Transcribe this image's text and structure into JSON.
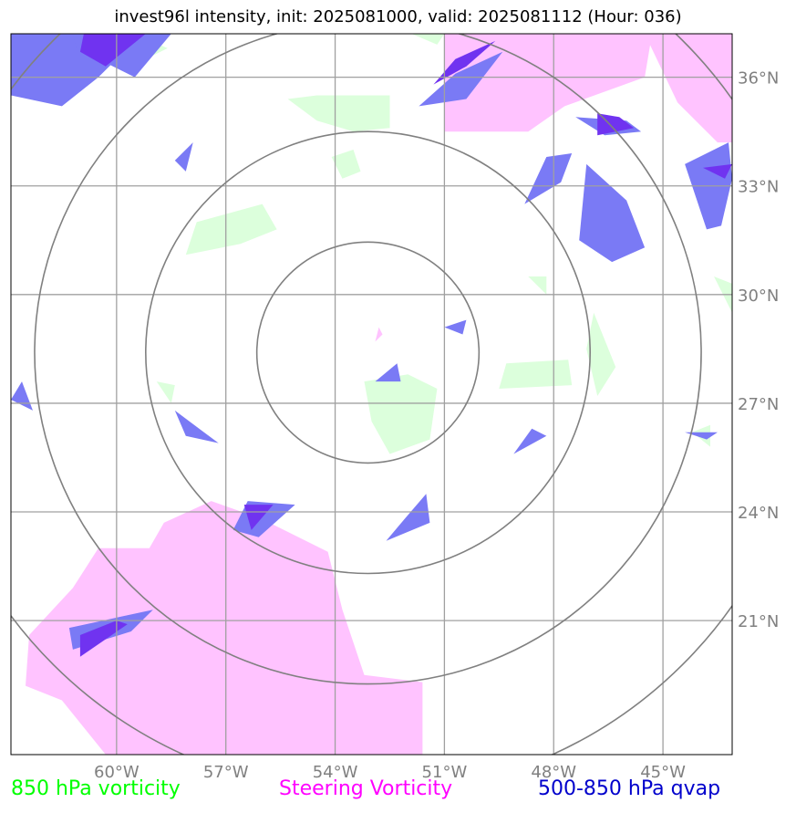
{
  "title": "invest96l intensity, init: 2025081000, valid: 2025081112 (Hour: 036)",
  "legend": [
    {
      "label": "850 hPa vorticity",
      "color": "#00ff00"
    },
    {
      "label": "Steering Vorticity",
      "color": "#ff00ff"
    },
    {
      "label": "500-850 hPa qvap",
      "color": "#0000cc"
    }
  ],
  "map": {
    "lon_range": [
      -62.9,
      -43.1
    ],
    "lat_range": [
      17.3,
      37.2
    ],
    "lon_ticks": [
      {
        "value": -60,
        "label": "60°W"
      },
      {
        "value": -57,
        "label": "57°W"
      },
      {
        "value": -54,
        "label": "54°W"
      },
      {
        "value": -51,
        "label": "51°W"
      },
      {
        "value": -48,
        "label": "48°W"
      },
      {
        "value": -45,
        "label": "45°W"
      }
    ],
    "lat_ticks": [
      {
        "value": 36,
        "label": "36°N"
      },
      {
        "value": 33,
        "label": "33°N"
      },
      {
        "value": 30,
        "label": "30°N"
      },
      {
        "value": 27,
        "label": "27°N"
      },
      {
        "value": 24,
        "label": "24°N"
      },
      {
        "value": 21,
        "label": "21°N"
      }
    ],
    "rings_center": {
      "lon": -53.1,
      "lat": 28.4
    },
    "ring_radii_deg": [
      3.05,
      6.1,
      9.15,
      12.2
    ],
    "colors": {
      "vorticity_850": "#dcffdc",
      "steering": "#ffc0ff",
      "qvap": "#7a7af5",
      "qvap_dark": "#7033f0",
      "grid": "#a0a0a0",
      "ring": "#808080",
      "tick_label": "#808080"
    },
    "fields": {
      "vorticity_850": [
        [
          [
            -54.5,
            35.5
          ],
          [
            -52.5,
            35.5
          ],
          [
            -52.5,
            34.6
          ],
          [
            -53.5,
            34.5
          ],
          [
            -54.5,
            34.8
          ],
          [
            -55.3,
            35.4
          ]
        ],
        [
          [
            -52,
            27.8
          ],
          [
            -51.2,
            27.4
          ],
          [
            -51.4,
            26
          ],
          [
            -52.5,
            25.6
          ],
          [
            -53,
            26.5
          ],
          [
            -53.2,
            27.6
          ]
        ],
        [
          [
            -57.8,
            32
          ],
          [
            -56,
            32.5
          ],
          [
            -55.6,
            31.8
          ],
          [
            -56.6,
            31.4
          ],
          [
            -58.1,
            31.1
          ]
        ],
        [
          [
            -49.3,
            28.1
          ],
          [
            -47.6,
            28.2
          ],
          [
            -47.5,
            27.5
          ],
          [
            -49.5,
            27.4
          ]
        ],
        [
          [
            -46.9,
            29.5
          ],
          [
            -46.3,
            28
          ],
          [
            -46.8,
            27.2
          ],
          [
            -47.1,
            28.5
          ]
        ],
        [
          [
            -58.9,
            27.6
          ],
          [
            -58.4,
            27.5
          ],
          [
            -58.5,
            27
          ]
        ],
        [
          [
            -54.1,
            33.8
          ],
          [
            -53.5,
            34
          ],
          [
            -53.3,
            33.4
          ],
          [
            -53.8,
            33.2
          ]
        ],
        [
          [
            -48.7,
            30.5
          ],
          [
            -48.2,
            30.5
          ],
          [
            -48.2,
            30
          ]
        ],
        [
          [
            -51.9,
            37.2
          ],
          [
            -51,
            37.2
          ],
          [
            -51.2,
            36.9
          ]
        ],
        [
          [
            -44.2,
            26.2
          ],
          [
            -43.7,
            26.4
          ],
          [
            -43.7,
            25.8
          ]
        ],
        [
          [
            -59.5,
            37.2
          ],
          [
            -58.6,
            36.8
          ],
          [
            -59.2,
            36.5
          ]
        ],
        [
          [
            -43.6,
            30.5
          ],
          [
            -43.1,
            30.3
          ],
          [
            -43.1,
            29.5
          ]
        ]
      ],
      "steering": [
        [
          [
            -51,
            37.2
          ],
          [
            -45.5,
            37.2
          ],
          [
            -44.6,
            35.3
          ],
          [
            -43.5,
            34.2
          ],
          [
            -43.1,
            34.2
          ],
          [
            -43.1,
            37.2
          ]
        ],
        [
          [
            -51,
            37.2
          ],
          [
            -51,
            34.5
          ],
          [
            -48.7,
            34.5
          ],
          [
            -47.7,
            35.2
          ],
          [
            -45.5,
            36
          ],
          [
            -45.3,
            37.2
          ]
        ],
        [
          [
            -60.3,
            17.3
          ],
          [
            -51.6,
            17.3
          ],
          [
            -51.6,
            19.3
          ],
          [
            -53.2,
            19.5
          ],
          [
            -53.8,
            21.3
          ],
          [
            -54.2,
            22.9
          ],
          [
            -56,
            23.8
          ],
          [
            -57.4,
            24.3
          ],
          [
            -58.7,
            23.7
          ],
          [
            -59.1,
            23
          ],
          [
            -60.5,
            23
          ],
          [
            -61.2,
            21.9
          ],
          [
            -62.4,
            20.6
          ],
          [
            -62.5,
            19.2
          ],
          [
            -61.5,
            18.8
          ]
        ],
        [
          [
            -61.5,
            37.2
          ],
          [
            -59.5,
            37.2
          ],
          [
            -60.3,
            36.5
          ],
          [
            -61.6,
            36.5
          ]
        ],
        [
          [
            -52.8,
            29.1
          ],
          [
            -52.7,
            28.9
          ],
          [
            -52.9,
            28.7
          ]
        ]
      ],
      "qvap": [
        [
          [
            -62.9,
            35.5
          ],
          [
            -61.5,
            35.2
          ],
          [
            -60.5,
            36
          ],
          [
            -59.3,
            37.2
          ],
          [
            -62.9,
            37.2
          ]
        ],
        [
          [
            -61.1,
            36.8
          ],
          [
            -59.5,
            36
          ],
          [
            -58.5,
            37.2
          ],
          [
            -61.2,
            37.2
          ]
        ],
        [
          [
            -51.7,
            35.2
          ],
          [
            -50.7,
            36.1
          ],
          [
            -49.4,
            36.7
          ],
          [
            -50.4,
            35.4
          ]
        ],
        [
          [
            -47.1,
            33.6
          ],
          [
            -46,
            32.6
          ],
          [
            -45.5,
            31.3
          ],
          [
            -46.4,
            30.9
          ],
          [
            -47.3,
            31.5
          ]
        ],
        [
          [
            -48.8,
            32.5
          ],
          [
            -48.2,
            33.8
          ],
          [
            -47.5,
            33.9
          ],
          [
            -47.8,
            33.1
          ]
        ],
        [
          [
            -47.4,
            34.9
          ],
          [
            -46,
            34.8
          ],
          [
            -45.6,
            34.5
          ],
          [
            -46.6,
            34.4
          ]
        ],
        [
          [
            -44.4,
            33.6
          ],
          [
            -43.2,
            34.2
          ],
          [
            -43.1,
            33.2
          ],
          [
            -43.4,
            31.9
          ],
          [
            -43.8,
            31.8
          ]
        ],
        [
          [
            -58.4,
            26.8
          ],
          [
            -57.6,
            26.2
          ],
          [
            -57.2,
            25.9
          ],
          [
            -58.1,
            26.1
          ]
        ],
        [
          [
            -56.4,
            24.3
          ],
          [
            -55.1,
            24.2
          ],
          [
            -56.1,
            23.3
          ],
          [
            -56.8,
            23.5
          ]
        ],
        [
          [
            -52.6,
            23.2
          ],
          [
            -51.4,
            23.7
          ],
          [
            -51.5,
            24.5
          ],
          [
            -52.1,
            23.8
          ]
        ],
        [
          [
            -51,
            29.1
          ],
          [
            -50.4,
            29.3
          ],
          [
            -50.5,
            28.9
          ]
        ],
        [
          [
            -52.9,
            27.6
          ],
          [
            -52.3,
            28.1
          ],
          [
            -52.2,
            27.6
          ]
        ],
        [
          [
            -62.6,
            27.6
          ],
          [
            -62.3,
            26.8
          ],
          [
            -62.9,
            27.1
          ]
        ],
        [
          [
            -49.1,
            25.6
          ],
          [
            -48.6,
            26.3
          ],
          [
            -48.2,
            26.1
          ]
        ],
        [
          [
            -44.4,
            26.2
          ],
          [
            -43.8,
            26
          ],
          [
            -43.5,
            26.2
          ]
        ],
        [
          [
            -58.4,
            33.7
          ],
          [
            -57.9,
            34.2
          ],
          [
            -58.1,
            33.4
          ]
        ],
        [
          [
            -61.2,
            20.2
          ],
          [
            -59.6,
            20.7
          ],
          [
            -59,
            21.3
          ],
          [
            -61.3,
            20.8
          ]
        ]
      ],
      "qvap_dark": [
        [
          [
            -60.3,
            36.3
          ],
          [
            -59.2,
            37.2
          ],
          [
            -60.9,
            37.2
          ],
          [
            -61,
            36.7
          ]
        ],
        [
          [
            -51.3,
            35.8
          ],
          [
            -50.4,
            36.3
          ],
          [
            -49.6,
            37
          ],
          [
            -50.7,
            36.5
          ]
        ],
        [
          [
            -46.8,
            35
          ],
          [
            -46.2,
            34.9
          ],
          [
            -45.8,
            34.6
          ],
          [
            -46.8,
            34.4
          ]
        ],
        [
          [
            -43.9,
            33.5
          ],
          [
            -43.3,
            33.2
          ],
          [
            -43.1,
            33.6
          ]
        ],
        [
          [
            -56.5,
            24.2
          ],
          [
            -55.7,
            24.2
          ],
          [
            -56.3,
            23.5
          ]
        ],
        [
          [
            -61,
            20.6
          ],
          [
            -60,
            21
          ],
          [
            -59.7,
            20.9
          ],
          [
            -61,
            20
          ]
        ]
      ]
    }
  }
}
